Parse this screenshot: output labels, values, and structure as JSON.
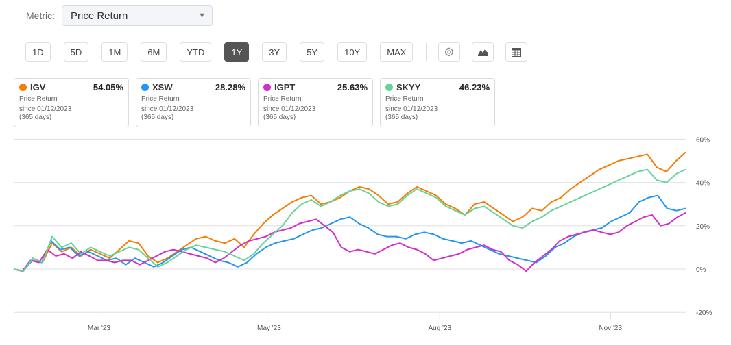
{
  "metric": {
    "label": "Metric:",
    "selected": "Price Return",
    "arrow": "▼"
  },
  "ranges": [
    {
      "label": "1D",
      "active": false
    },
    {
      "label": "5D",
      "active": false
    },
    {
      "label": "1M",
      "active": false
    },
    {
      "label": "6M",
      "active": false
    },
    {
      "label": "YTD",
      "active": false
    },
    {
      "label": "1Y",
      "active": true
    },
    {
      "label": "3Y",
      "active": false
    },
    {
      "label": "5Y",
      "active": false
    },
    {
      "label": "10Y",
      "active": false
    },
    {
      "label": "MAX",
      "active": false
    }
  ],
  "tools": [
    {
      "name": "settings",
      "icon": "gear-icon"
    },
    {
      "name": "chart-type",
      "icon": "area-chart-icon"
    },
    {
      "name": "table-view",
      "icon": "table-icon"
    }
  ],
  "cards": [
    {
      "ticker": "IGV",
      "value": "54.05%",
      "metric": "Price Return",
      "since": "since 01/12/2023",
      "days": "(365 days)",
      "color": "#f57c00"
    },
    {
      "ticker": "XSW",
      "value": "28.28%",
      "metric": "Price Return",
      "since": "since 01/12/2023",
      "days": "(365 days)",
      "color": "#2196f3"
    },
    {
      "ticker": "IGPT",
      "value": "25.63%",
      "metric": "Price Return",
      "since": "since 01/12/2023",
      "days": "(365 days)",
      "color": "#d42ec8"
    },
    {
      "ticker": "SKYY",
      "value": "46.23%",
      "metric": "Price Return",
      "since": "since 01/12/2023",
      "days": "(365 days)",
      "color": "#66d49a"
    }
  ],
  "chart_data": {
    "type": "line",
    "title": "",
    "xlabel": "",
    "ylabel": "",
    "ylim": [
      -20,
      60
    ],
    "y_ticks": [
      "60%",
      "40%",
      "20%",
      "0%",
      "-20%"
    ],
    "y_tick_values": [
      60,
      40,
      20,
      0,
      -20
    ],
    "x_ticks": [
      "Mar '23",
      "May '23",
      "Aug '23",
      "Nov '23"
    ],
    "x_tick_positions": [
      0.127,
      0.38,
      0.634,
      0.888
    ],
    "grid": true,
    "legend_position": "top (cards)",
    "x_start": "01/12/2023",
    "x_end": "01/12/2024",
    "series": [
      {
        "name": "IGV",
        "color": "#f57c00",
        "values": [
          0,
          -1,
          5,
          3,
          12,
          8,
          10,
          6,
          9,
          7,
          5,
          9,
          13,
          12,
          6,
          3,
          5,
          8,
          11,
          14,
          15,
          13,
          12,
          14,
          10,
          16,
          21,
          25,
          28,
          31,
          33,
          34,
          30,
          31,
          33,
          36,
          38,
          37,
          34,
          30,
          31,
          35,
          38,
          36,
          34,
          30,
          28,
          25,
          30,
          31,
          28,
          25,
          22,
          24,
          28,
          27,
          31,
          33,
          37,
          40,
          43,
          46,
          48,
          50,
          51,
          52,
          53,
          47,
          45,
          50,
          54
        ]
      },
      {
        "name": "XSW",
        "color": "#2196f3",
        "values": [
          0,
          -1,
          4,
          3,
          13,
          9,
          10,
          6,
          8,
          6,
          4,
          5,
          2,
          5,
          3,
          1,
          3,
          6,
          9,
          10,
          8,
          6,
          4,
          3,
          1,
          3,
          7,
          10,
          12,
          13,
          14,
          16,
          18,
          19,
          21,
          23,
          24,
          21,
          19,
          16,
          15,
          15,
          14,
          16,
          17,
          16,
          14,
          13,
          12,
          13,
          11,
          9,
          7,
          6,
          5,
          4,
          3,
          6,
          10,
          12,
          15,
          17,
          18,
          19,
          22,
          24,
          26,
          31,
          33,
          34,
          28,
          27,
          28
        ]
      },
      {
        "name": "IGPT",
        "color": "#d42ec8",
        "values": [
          0,
          -1,
          4,
          3,
          9,
          6,
          7,
          5,
          8,
          6,
          4,
          4,
          3,
          4,
          4,
          2,
          4,
          6,
          8,
          9,
          8,
          7,
          6,
          5,
          3,
          5,
          8,
          11,
          13,
          14,
          15,
          17,
          18,
          19,
          21,
          22,
          23,
          20,
          17,
          10,
          8,
          9,
          8,
          7,
          9,
          11,
          12,
          10,
          9,
          7,
          4,
          5,
          6,
          7,
          9,
          10,
          11,
          9,
          8,
          4,
          2,
          -1,
          3,
          6,
          9,
          13,
          15,
          16,
          17,
          18,
          17,
          16,
          17,
          20,
          22,
          24,
          25,
          20,
          21,
          24,
          26
        ]
      },
      {
        "name": "SKYY",
        "color": "#66d49a",
        "values": [
          0,
          -1,
          5,
          3,
          15,
          10,
          12,
          7,
          10,
          8,
          6,
          8,
          10,
          9,
          5,
          1,
          3,
          6,
          9,
          11,
          10,
          9,
          8,
          6,
          4,
          7,
          12,
          16,
          20,
          26,
          30,
          32,
          29,
          31,
          34,
          36,
          37,
          35,
          31,
          29,
          30,
          34,
          37,
          35,
          33,
          29,
          27,
          25,
          28,
          29,
          26,
          23,
          20,
          19,
          22,
          24,
          27,
          29,
          31,
          33,
          35,
          37,
          39,
          41,
          43,
          45,
          46,
          41,
          40,
          44,
          46
        ]
      }
    ]
  }
}
